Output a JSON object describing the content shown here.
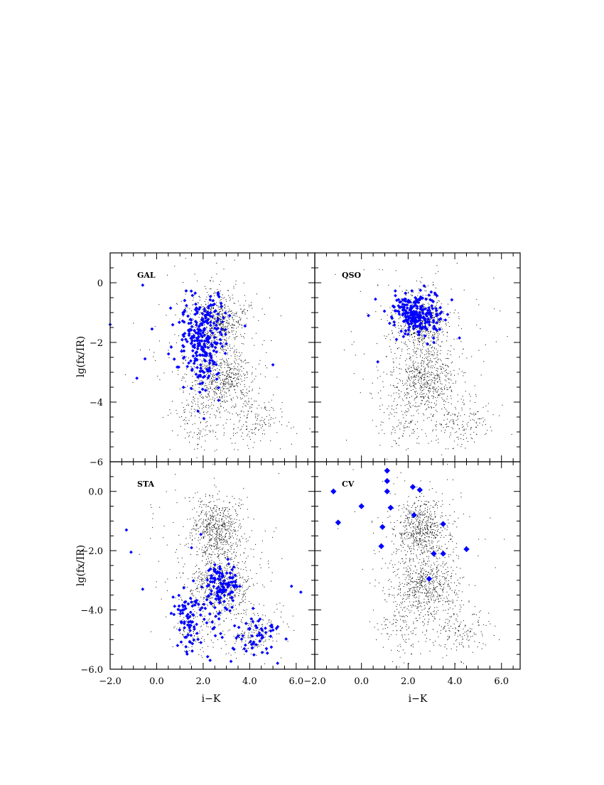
{
  "figure": {
    "xlabel": "i−K",
    "ylabel": "lg(fx/IR)",
    "x_tick_labels": [
      "−2.0",
      "0.0",
      "2.0",
      "4.0",
      "6.0"
    ],
    "top_y_tick_labels": [
      "0",
      "−2",
      "−4",
      "−6"
    ],
    "bottom_y_tick_labels": [
      "0.0",
      "−2.0",
      "−4.0",
      "−6.0"
    ]
  },
  "colors": {
    "highlight": "#0000ff",
    "background_points": "#000000"
  },
  "chart_data": [
    {
      "type": "scatter",
      "panel": "GAL",
      "xlim": [
        -2.0,
        6.8
      ],
      "ylim": [
        -6,
        1
      ],
      "grid": false,
      "highlight_series": {
        "clusters": [
          {
            "cx": 1.9,
            "cy": -2.0,
            "sx": 0.45,
            "sy": 0.75,
            "n": 250
          },
          {
            "cx": 2.5,
            "cy": -1.1,
            "sx": 0.3,
            "sy": 0.3,
            "n": 30
          }
        ],
        "points": [
          [
            -0.6,
            -0.08
          ],
          [
            -2.0,
            -1.4
          ],
          [
            -0.5,
            -2.55
          ],
          [
            -0.85,
            -3.2
          ],
          [
            5.0,
            -2.75
          ],
          [
            0.6,
            -0.85
          ],
          [
            -0.2,
            -1.55
          ],
          [
            3.8,
            -1.45
          ]
        ]
      },
      "background_series": {
        "clusters": [
          {
            "cx": 2.6,
            "cy": -1.3,
            "sx": 0.55,
            "sy": 0.5,
            "n": 550
          },
          {
            "cx": 2.8,
            "cy": -3.2,
            "sx": 0.65,
            "sy": 0.5,
            "n": 500
          },
          {
            "cx": 1.7,
            "cy": -4.6,
            "sx": 0.5,
            "sy": 0.55,
            "n": 120
          },
          {
            "cx": 4.2,
            "cy": -4.7,
            "sx": 0.75,
            "sy": 0.45,
            "n": 170
          },
          {
            "cx": 2.5,
            "cy": -2.3,
            "sx": 1.3,
            "sy": 1.4,
            "n": 240
          }
        ]
      }
    },
    {
      "type": "scatter",
      "panel": "QSO",
      "xlim": [
        -2.0,
        6.8
      ],
      "ylim": [
        -6,
        1
      ],
      "grid": false,
      "highlight_series": {
        "clusters": [
          {
            "cx": 2.4,
            "cy": -1.05,
            "sx": 0.55,
            "sy": 0.35,
            "n": 230
          }
        ],
        "points": [
          [
            0.3,
            -1.1
          ],
          [
            0.6,
            -0.55
          ],
          [
            4.2,
            -1.85
          ],
          [
            0.7,
            -2.65
          ],
          [
            3.6,
            -1.25
          ],
          [
            3.1,
            -2.0
          ],
          [
            1.5,
            -1.9
          ]
        ]
      },
      "background_series": {
        "clusters": [
          {
            "cx": 2.6,
            "cy": -1.3,
            "sx": 0.55,
            "sy": 0.5,
            "n": 550
          },
          {
            "cx": 2.8,
            "cy": -3.2,
            "sx": 0.65,
            "sy": 0.5,
            "n": 500
          },
          {
            "cx": 1.7,
            "cy": -4.6,
            "sx": 0.5,
            "sy": 0.55,
            "n": 120
          },
          {
            "cx": 4.2,
            "cy": -4.7,
            "sx": 0.75,
            "sy": 0.45,
            "n": 170
          },
          {
            "cx": 2.5,
            "cy": -2.3,
            "sx": 1.3,
            "sy": 1.4,
            "n": 240
          }
        ]
      }
    },
    {
      "type": "scatter",
      "panel": "STA",
      "xlim": [
        -2.0,
        6.8
      ],
      "ylim": [
        -6.0,
        1.0
      ],
      "grid": false,
      "highlight_series": {
        "clusters": [
          {
            "cx": 2.8,
            "cy": -3.2,
            "sx": 0.35,
            "sy": 0.35,
            "n": 120
          },
          {
            "cx": 1.3,
            "cy": -4.2,
            "sx": 0.3,
            "sy": 0.6,
            "n": 70
          },
          {
            "cx": 4.3,
            "cy": -4.8,
            "sx": 0.6,
            "sy": 0.35,
            "n": 60
          },
          {
            "cx": 2.3,
            "cy": -4.5,
            "sx": 0.3,
            "sy": 0.45,
            "n": 20
          }
        ],
        "points": [
          [
            -1.3,
            -1.3
          ],
          [
            -1.1,
            -2.05
          ],
          [
            -0.6,
            -3.3
          ],
          [
            6.2,
            -3.4
          ],
          [
            5.8,
            -3.2
          ],
          [
            1.9,
            -1.45
          ],
          [
            1.5,
            -1.9
          ],
          [
            2.3,
            -5.7
          ],
          [
            5.2,
            -5.8
          ],
          [
            0.9,
            -5.2
          ]
        ]
      },
      "background_series": {
        "clusters": [
          {
            "cx": 2.6,
            "cy": -1.3,
            "sx": 0.55,
            "sy": 0.5,
            "n": 550
          },
          {
            "cx": 2.8,
            "cy": -3.2,
            "sx": 0.65,
            "sy": 0.5,
            "n": 500
          },
          {
            "cx": 1.7,
            "cy": -4.6,
            "sx": 0.5,
            "sy": 0.55,
            "n": 120
          },
          {
            "cx": 4.2,
            "cy": -4.7,
            "sx": 0.75,
            "sy": 0.45,
            "n": 170
          },
          {
            "cx": 2.5,
            "cy": -2.3,
            "sx": 1.3,
            "sy": 1.4,
            "n": 240
          }
        ]
      }
    },
    {
      "type": "scatter",
      "panel": "CV",
      "xlim": [
        -2.0,
        6.8
      ],
      "ylim": [
        -6.0,
        1.0
      ],
      "grid": false,
      "highlight_series": {
        "clusters": [],
        "points": [
          [
            1.1,
            0.7
          ],
          [
            1.1,
            0.35
          ],
          [
            1.1,
            0.0
          ],
          [
            2.2,
            0.15
          ],
          [
            2.5,
            0.05
          ],
          [
            -1.2,
            0.0
          ],
          [
            0.0,
            -0.5
          ],
          [
            1.25,
            -0.55
          ],
          [
            -1.0,
            -1.05
          ],
          [
            0.9,
            -1.2
          ],
          [
            2.25,
            -0.8
          ],
          [
            3.5,
            -1.1
          ],
          [
            0.85,
            -1.85
          ],
          [
            3.1,
            -2.1
          ],
          [
            3.5,
            -2.1
          ],
          [
            4.5,
            -1.95
          ],
          [
            2.9,
            -2.95
          ]
        ]
      },
      "background_series": {
        "clusters": [
          {
            "cx": 2.6,
            "cy": -1.3,
            "sx": 0.55,
            "sy": 0.5,
            "n": 550
          },
          {
            "cx": 2.8,
            "cy": -3.2,
            "sx": 0.65,
            "sy": 0.5,
            "n": 500
          },
          {
            "cx": 1.7,
            "cy": -4.6,
            "sx": 0.5,
            "sy": 0.55,
            "n": 120
          },
          {
            "cx": 4.2,
            "cy": -4.7,
            "sx": 0.75,
            "sy": 0.45,
            "n": 170
          },
          {
            "cx": 2.5,
            "cy": -2.3,
            "sx": 1.3,
            "sy": 1.4,
            "n": 240
          }
        ]
      }
    }
  ]
}
